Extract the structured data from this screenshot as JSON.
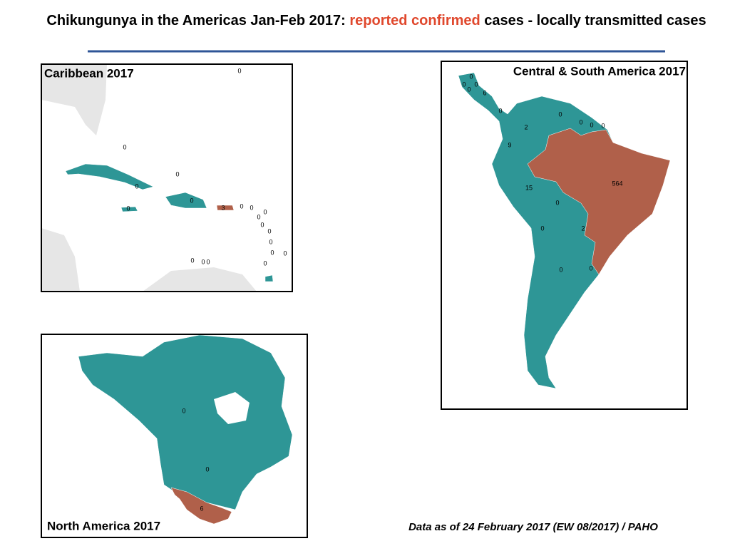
{
  "header": {
    "title_start": "Chikungunya in the Americas Jan-Feb 2017:",
    "title_highlight": "reported confirmed",
    "title_end": "cases - locally transmitted cases"
  },
  "panels": [
    {
      "title": "Caribbean 2017",
      "labels": [
        "0",
        "0",
        "0",
        "0",
        "0",
        "0",
        "3",
        "0",
        "0",
        "0",
        "0",
        "0",
        "0",
        "0",
        "0",
        "0",
        "0",
        "0",
        "0",
        "0"
      ]
    },
    {
      "title": "Central & South America  2017",
      "labels": [
        "0",
        "0",
        "0",
        "0",
        "6",
        "0",
        "0",
        "0",
        "0",
        "0",
        "2",
        "9",
        "564",
        "15",
        "0",
        "0",
        "2",
        "0",
        "0"
      ]
    },
    {
      "title": "North America 2017",
      "labels": [
        "0",
        "0",
        "6"
      ]
    }
  ],
  "footer": "Data as of 24 February 2017 (EW 08/2017) / PAHO"
}
